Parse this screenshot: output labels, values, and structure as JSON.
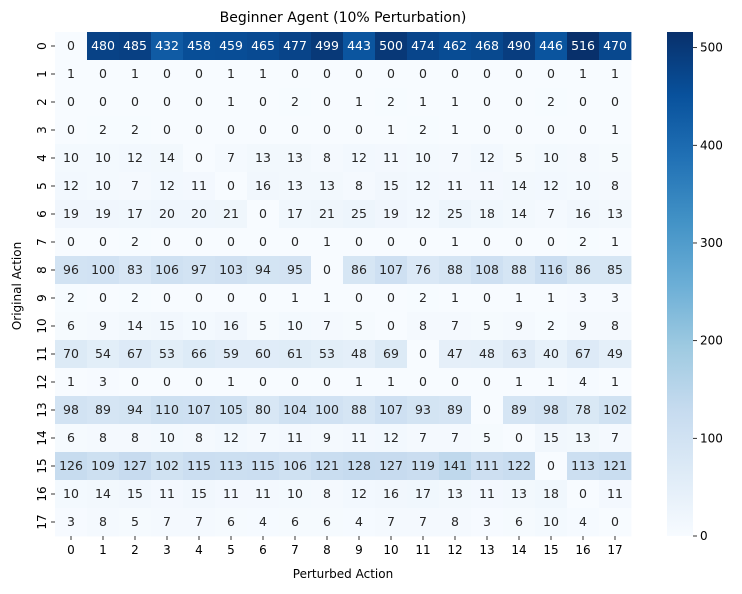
{
  "chart_data": {
    "type": "heatmap",
    "title": "Beginner Agent (10% Perturbation)",
    "xlabel": "Perturbed Action",
    "ylabel": "Original Action",
    "x_categories": [
      "0",
      "1",
      "2",
      "3",
      "4",
      "5",
      "6",
      "7",
      "8",
      "9",
      "10",
      "11",
      "12",
      "13",
      "14",
      "15",
      "16",
      "17"
    ],
    "y_categories": [
      "0",
      "1",
      "2",
      "3",
      "4",
      "5",
      "6",
      "7",
      "8",
      "9",
      "10",
      "11",
      "12",
      "13",
      "14",
      "15",
      "16",
      "17"
    ],
    "values": [
      [
        0,
        480,
        485,
        432,
        458,
        459,
        465,
        477,
        499,
        443,
        500,
        474,
        462,
        468,
        490,
        446,
        516,
        470
      ],
      [
        1,
        0,
        1,
        0,
        0,
        1,
        1,
        0,
        0,
        0,
        0,
        0,
        0,
        0,
        0,
        0,
        1,
        1
      ],
      [
        0,
        0,
        0,
        0,
        0,
        1,
        0,
        2,
        0,
        1,
        2,
        1,
        1,
        0,
        0,
        2,
        0,
        0
      ],
      [
        0,
        2,
        2,
        0,
        0,
        0,
        0,
        0,
        0,
        0,
        1,
        2,
        1,
        0,
        0,
        0,
        0,
        1
      ],
      [
        10,
        10,
        12,
        14,
        0,
        7,
        13,
        13,
        8,
        12,
        11,
        10,
        7,
        12,
        5,
        10,
        8,
        5
      ],
      [
        12,
        10,
        7,
        12,
        11,
        0,
        16,
        13,
        13,
        8,
        15,
        12,
        11,
        11,
        14,
        12,
        10,
        8
      ],
      [
        19,
        19,
        17,
        20,
        20,
        21,
        0,
        17,
        21,
        25,
        19,
        12,
        25,
        18,
        14,
        7,
        16,
        13
      ],
      [
        0,
        0,
        2,
        0,
        0,
        0,
        0,
        0,
        1,
        0,
        0,
        0,
        1,
        0,
        0,
        0,
        2,
        1
      ],
      [
        96,
        100,
        83,
        106,
        97,
        103,
        94,
        95,
        0,
        86,
        107,
        76,
        88,
        108,
        88,
        116,
        86,
        85
      ],
      [
        2,
        0,
        2,
        0,
        0,
        0,
        0,
        1,
        1,
        0,
        0,
        2,
        1,
        0,
        1,
        1,
        3,
        3
      ],
      [
        6,
        9,
        14,
        15,
        10,
        16,
        5,
        10,
        7,
        5,
        0,
        8,
        7,
        5,
        9,
        2,
        9,
        8
      ],
      [
        70,
        54,
        67,
        53,
        66,
        59,
        60,
        61,
        53,
        48,
        69,
        0,
        47,
        48,
        63,
        40,
        67,
        49
      ],
      [
        1,
        3,
        0,
        0,
        0,
        1,
        0,
        0,
        0,
        1,
        1,
        0,
        0,
        0,
        1,
        1,
        4,
        1
      ],
      [
        98,
        89,
        94,
        110,
        107,
        105,
        80,
        104,
        100,
        88,
        107,
        93,
        89,
        0,
        89,
        98,
        78,
        102
      ],
      [
        6,
        8,
        8,
        10,
        8,
        12,
        7,
        11,
        9,
        11,
        12,
        7,
        7,
        5,
        0,
        15,
        13,
        7
      ],
      [
        126,
        109,
        127,
        102,
        115,
        113,
        115,
        106,
        121,
        128,
        127,
        119,
        141,
        111,
        122,
        0,
        113,
        121
      ],
      [
        10,
        14,
        15,
        11,
        15,
        11,
        11,
        10,
        8,
        12,
        16,
        17,
        13,
        11,
        13,
        18,
        0,
        11
      ],
      [
        3,
        8,
        5,
        7,
        7,
        6,
        4,
        6,
        6,
        4,
        7,
        7,
        8,
        3,
        6,
        10,
        4,
        0
      ]
    ],
    "vmin": 0,
    "vmax": 516,
    "colormap": "Blues",
    "colorbar_ticks": [
      0,
      100,
      200,
      300,
      400,
      500
    ],
    "colorbar_tick_labels": [
      "0",
      "100",
      "200",
      "300",
      "400",
      "500"
    ],
    "annotated": true,
    "colors": {
      "low": "#f7fbff",
      "high": "#08306b",
      "text_dark": "#262626",
      "text_light": "#ffffff"
    }
  }
}
